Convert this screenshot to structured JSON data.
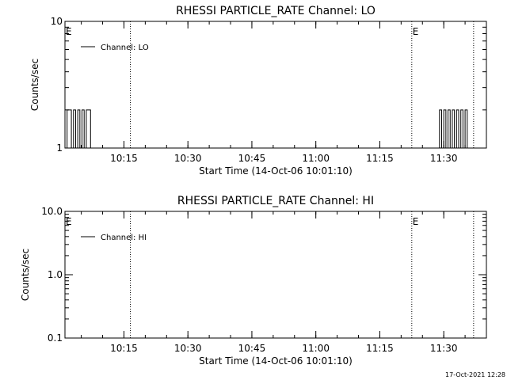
{
  "footer_timestamp": "17-Oct-2021 12:28",
  "chart_data": [
    {
      "type": "line",
      "title": "RHESSI PARTICLE_RATE Channel: LO",
      "xlabel": "Start Time (14-Oct-06 10:01:10)",
      "ylabel": "Counts/sec",
      "y_scale": "log",
      "ylim": [
        1,
        10
      ],
      "y_ticks": [
        1,
        10
      ],
      "y_tick_labels": [
        "1",
        "10"
      ],
      "xlim": [
        "10:01:10",
        "11:40:00"
      ],
      "x_ticks": [
        "10:15",
        "10:30",
        "10:45",
        "11:00",
        "11:15",
        "11:30"
      ],
      "vertical_markers": [
        "10:16:30",
        "11:22:30",
        "11:37:00"
      ],
      "event_markers": [
        {
          "label": "E",
          "time": "10:01:10"
        },
        {
          "label": "E",
          "time": "11:22:30"
        }
      ],
      "legend": {
        "position": "top-left",
        "entries": [
          "Channel: LO"
        ]
      },
      "series": [
        {
          "name": "Channel: LO",
          "x": [
            "10:01:10",
            "10:01:40",
            "10:02:10",
            "10:02:40",
            "10:03:10",
            "10:03:40",
            "10:04:10",
            "10:04:40",
            "10:05:10",
            "10:05:40",
            "10:06:10",
            "10:06:40",
            "10:07:10",
            "10:07:40",
            "11:28:30",
            "11:29:00",
            "11:29:30",
            "11:30:00",
            "11:30:30",
            "11:31:00",
            "11:31:30",
            "11:32:00",
            "11:32:30",
            "11:33:00",
            "11:33:30",
            "11:34:00",
            "11:34:30",
            "11:35:00",
            "11:35:30"
          ],
          "y": [
            1,
            2,
            2,
            1,
            2,
            1,
            2,
            1,
            2,
            1,
            2,
            2,
            1,
            1,
            1,
            2,
            1,
            2,
            1,
            2,
            1,
            2,
            1,
            2,
            1,
            2,
            1,
            2,
            1
          ]
        }
      ]
    },
    {
      "type": "line",
      "title": "RHESSI PARTICLE_RATE Channel: HI",
      "xlabel": "Start Time (14-Oct-06 10:01:10)",
      "ylabel": "Counts/sec",
      "y_scale": "log",
      "ylim": [
        0.1,
        10
      ],
      "y_ticks": [
        0.1,
        1,
        10
      ],
      "y_tick_labels": [
        "0.1",
        "1.0",
        "10.0"
      ],
      "xlim": [
        "10:01:10",
        "11:40:00"
      ],
      "x_ticks": [
        "10:15",
        "10:30",
        "10:45",
        "11:00",
        "11:15",
        "11:30"
      ],
      "vertical_markers": [
        "10:16:30",
        "11:22:30",
        "11:37:00"
      ],
      "event_markers": [
        {
          "label": "E",
          "time": "10:01:10"
        },
        {
          "label": "E",
          "time": "11:22:30"
        }
      ],
      "legend": {
        "position": "top-left",
        "entries": [
          "Channel: HI"
        ]
      },
      "series": [
        {
          "name": "Channel: HI",
          "x": [],
          "y": []
        }
      ]
    }
  ]
}
